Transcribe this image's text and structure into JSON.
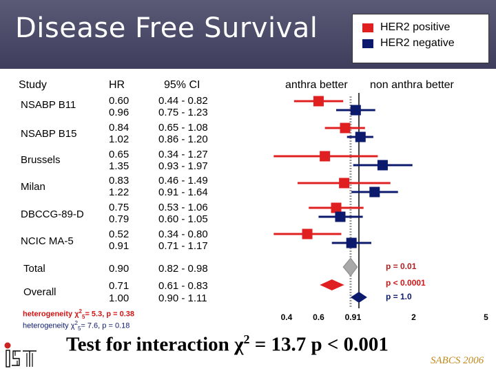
{
  "title": "Disease Free Survival",
  "legend": {
    "items": [
      {
        "label": "HER2 positive",
        "color": "#e02020"
      },
      {
        "label": "HER2 negative",
        "color": "#0c1a6e"
      }
    ]
  },
  "columns": {
    "study": "Study",
    "hr": "HR",
    "ci": "95% CI"
  },
  "direction_labels": {
    "left": "anthra better",
    "right": "non anthra better"
  },
  "studies": [
    {
      "name": "NSABP B11",
      "hr_pos": "0.60",
      "hr_neg": "0.96",
      "ci_pos": "0.44 - 0.82",
      "ci_neg": "0.75 - 1.23"
    },
    {
      "name": "NSABP B15",
      "hr_pos": "0.84",
      "hr_neg": "1.02",
      "ci_pos": "0.65 - 1.08",
      "ci_neg": "0.86 - 1.20"
    },
    {
      "name": "Brussels",
      "hr_pos": "0.65",
      "hr_neg": "1.35",
      "ci_pos": "0.34 - 1.27",
      "ci_neg": "0.93 - 1.97"
    },
    {
      "name": "Milan",
      "hr_pos": "0.83",
      "hr_neg": "1.22",
      "ci_pos": "0.46 - 1.49",
      "ci_neg": "0.91 - 1.64"
    },
    {
      "name": "DBCCG-89-D",
      "hr_pos": "0.75",
      "hr_neg": "0.79",
      "ci_pos": "0.53 - 1.06",
      "ci_neg": "0.60 - 1.05"
    },
    {
      "name": "NCIC MA-5",
      "hr_pos": "0.52",
      "hr_neg": "0.91",
      "ci_pos": "0.34 - 0.80",
      "ci_neg": "0.71 - 1.17"
    }
  ],
  "total": {
    "label": "Total",
    "hr": "0.90",
    "ci": "0.82 - 0.98",
    "p": "p = 0.01"
  },
  "overall": {
    "label": "Overall",
    "hr_pos": "0.71",
    "hr_neg": "1.00",
    "ci_pos": "0.61 - 0.83",
    "ci_neg": "0.90 - 1.11",
    "p_pos": "p < 0.0001",
    "p_neg": "p = 1.0"
  },
  "heterogeneity": {
    "pos": {
      "prefix": "heterogeneity ",
      "chi": "χ",
      "sup": "2",
      "sub": "5",
      "rest": "= 5.3,  p = 0.38"
    },
    "neg": {
      "prefix": "heterogeneity ",
      "chi": "χ",
      "sup": "2",
      "sub": "5",
      "rest": "= 7.6,  p = 0.18"
    }
  },
  "interaction": {
    "prefix": "Test for interaction ",
    "chi": "χ",
    "sup": "2",
    "rest": " = 13.7  p  < 0.001"
  },
  "footer": "SABCS 2006",
  "chart_data": {
    "type": "forest",
    "scale": "log",
    "x_ticks": [
      {
        "value": 0.4,
        "label": "0.4"
      },
      {
        "value": 0.6,
        "label": "0.6"
      },
      {
        "value": 0.9,
        "label": "0.9"
      },
      {
        "value": 1,
        "label": "1"
      },
      {
        "value": 2,
        "label": "2"
      },
      {
        "value": 5,
        "label": "5"
      }
    ],
    "reference_line": 1,
    "dotted_line": 0.9,
    "series": [
      {
        "name": "HER2 positive",
        "color": "#e02020",
        "points": [
          {
            "study": "NSABP B11",
            "hr": 0.6,
            "lo": 0.44,
            "hi": 0.82
          },
          {
            "study": "NSABP B15",
            "hr": 0.84,
            "lo": 0.65,
            "hi": 1.08
          },
          {
            "study": "Brussels",
            "hr": 0.65,
            "lo": 0.34,
            "hi": 1.27
          },
          {
            "study": "Milan",
            "hr": 0.83,
            "lo": 0.46,
            "hi": 1.49
          },
          {
            "study": "DBCCG-89-D",
            "hr": 0.75,
            "lo": 0.53,
            "hi": 1.06
          },
          {
            "study": "NCIC MA-5",
            "hr": 0.52,
            "lo": 0.34,
            "hi": 0.8
          }
        ],
        "overall": {
          "hr": 0.71,
          "lo": 0.61,
          "hi": 0.83
        }
      },
      {
        "name": "HER2 negative",
        "color": "#0c1a6e",
        "points": [
          {
            "study": "NSABP B11",
            "hr": 0.96,
            "lo": 0.75,
            "hi": 1.23
          },
          {
            "study": "NSABP B15",
            "hr": 1.02,
            "lo": 0.86,
            "hi": 1.2
          },
          {
            "study": "Brussels",
            "hr": 1.35,
            "lo": 0.93,
            "hi": 1.97
          },
          {
            "study": "Milan",
            "hr": 1.22,
            "lo": 0.91,
            "hi": 1.64
          },
          {
            "study": "DBCCG-89-D",
            "hr": 0.79,
            "lo": 0.6,
            "hi": 1.05
          },
          {
            "study": "NCIC MA-5",
            "hr": 0.91,
            "lo": 0.71,
            "hi": 1.17
          }
        ],
        "overall": {
          "hr": 1.0,
          "lo": 0.9,
          "hi": 1.11
        }
      }
    ],
    "total": {
      "hr": 0.9,
      "lo": 0.82,
      "hi": 0.98,
      "color": "#a9a9a9"
    }
  }
}
